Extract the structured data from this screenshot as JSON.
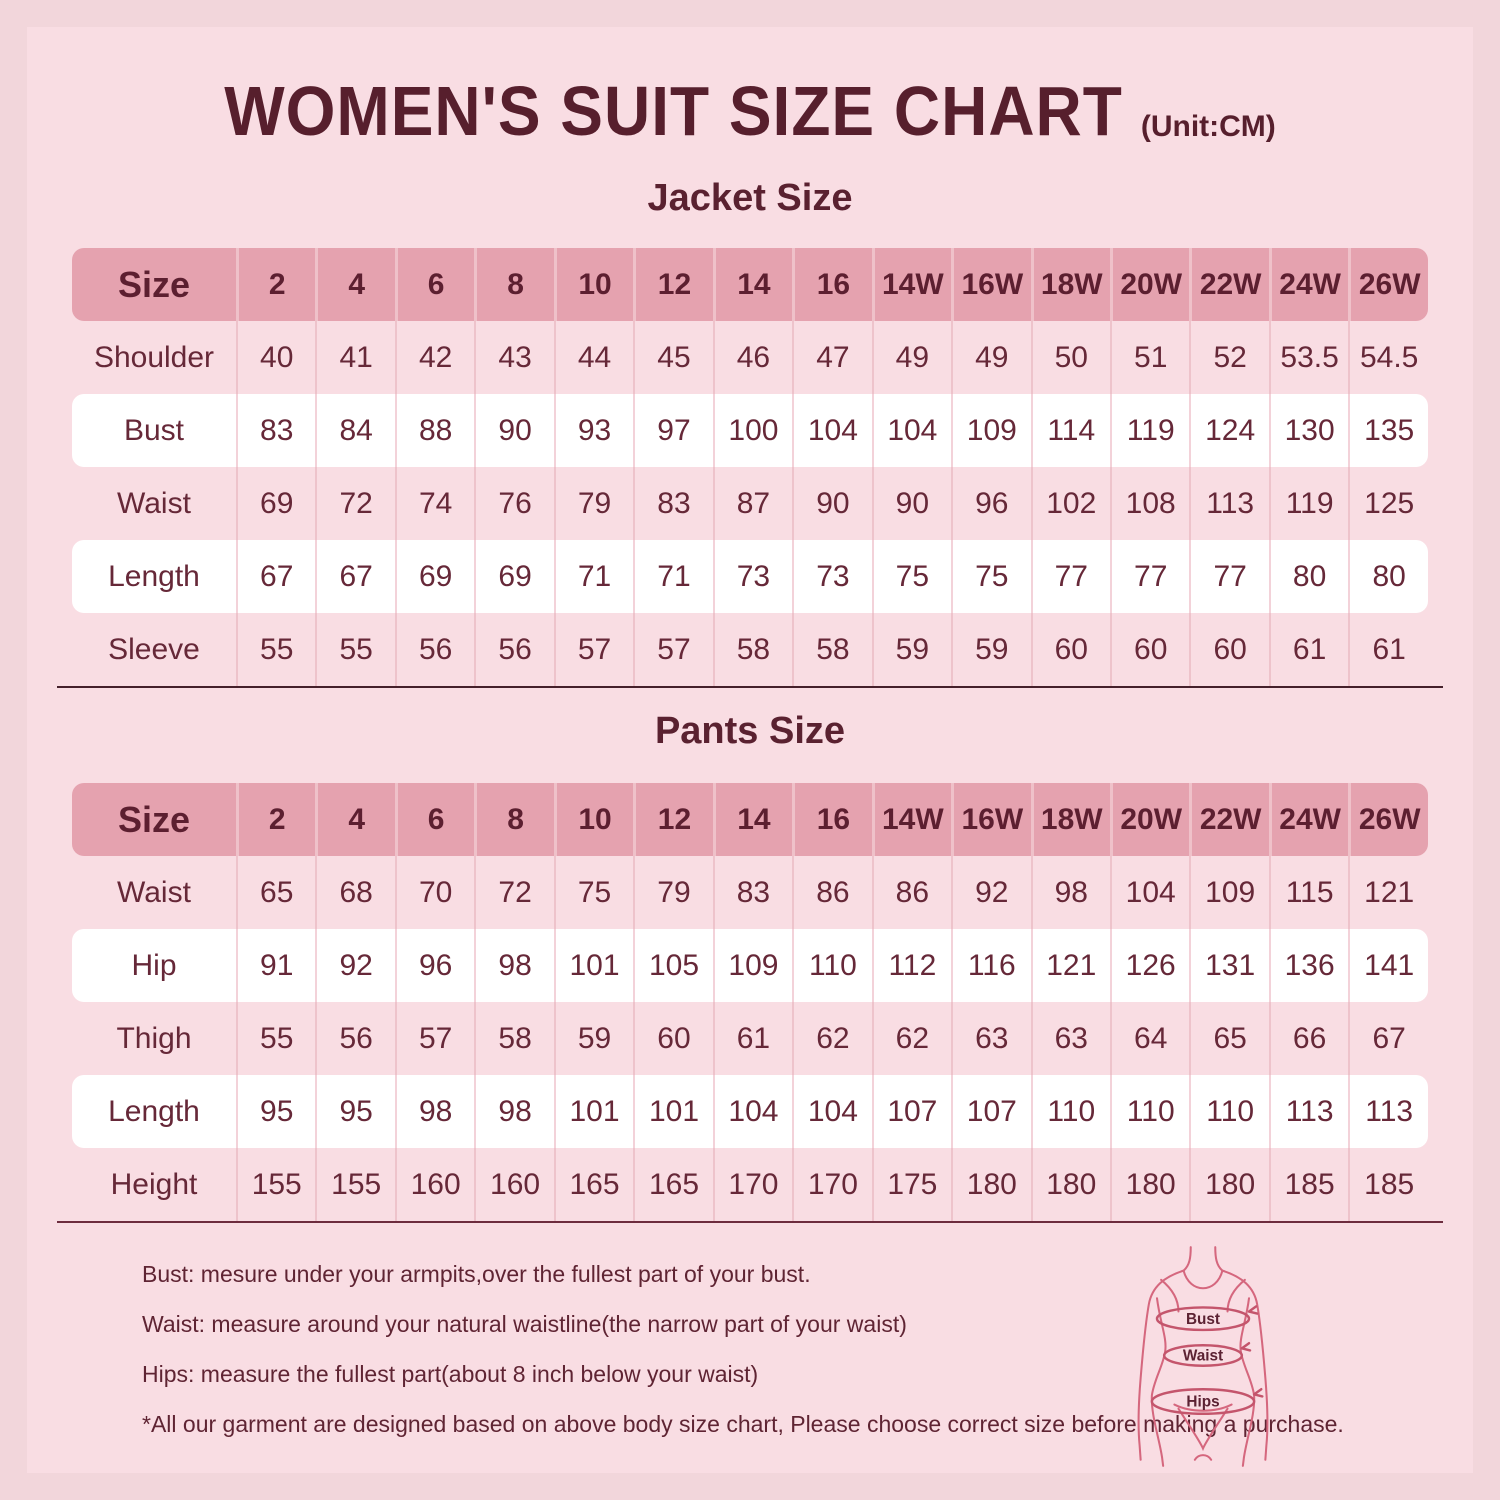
{
  "header": {
    "title": "WOMEN'S SUIT SIZE CHART",
    "unit": "(Unit:CM)"
  },
  "jacket": {
    "title": "Jacket Size",
    "size_label": "Size",
    "sizes": [
      "2",
      "4",
      "6",
      "8",
      "10",
      "12",
      "14",
      "16",
      "14W",
      "16W",
      "18W",
      "20W",
      "22W",
      "24W",
      "26W"
    ],
    "rows": [
      {
        "label": "Shoulder",
        "values": [
          "40",
          "41",
          "42",
          "43",
          "44",
          "45",
          "46",
          "47",
          "49",
          "49",
          "50",
          "51",
          "52",
          "53.5",
          "54.5"
        ]
      },
      {
        "label": "Bust",
        "values": [
          "83",
          "84",
          "88",
          "90",
          "93",
          "97",
          "100",
          "104",
          "104",
          "109",
          "114",
          "119",
          "124",
          "130",
          "135"
        ]
      },
      {
        "label": "Waist",
        "values": [
          "69",
          "72",
          "74",
          "76",
          "79",
          "83",
          "87",
          "90",
          "90",
          "96",
          "102",
          "108",
          "113",
          "119",
          "125"
        ]
      },
      {
        "label": "Length",
        "values": [
          "67",
          "67",
          "69",
          "69",
          "71",
          "71",
          "73",
          "73",
          "75",
          "75",
          "77",
          "77",
          "77",
          "80",
          "80"
        ]
      },
      {
        "label": "Sleeve",
        "values": [
          "55",
          "55",
          "56",
          "56",
          "57",
          "57",
          "58",
          "58",
          "59",
          "59",
          "60",
          "60",
          "60",
          "61",
          "61"
        ]
      }
    ]
  },
  "pants": {
    "title": "Pants Size",
    "size_label": "Size",
    "sizes": [
      "2",
      "4",
      "6",
      "8",
      "10",
      "12",
      "14",
      "16",
      "14W",
      "16W",
      "18W",
      "20W",
      "22W",
      "24W",
      "26W"
    ],
    "rows": [
      {
        "label": "Waist",
        "values": [
          "65",
          "68",
          "70",
          "72",
          "75",
          "79",
          "83",
          "86",
          "86",
          "92",
          "98",
          "104",
          "109",
          "115",
          "121"
        ]
      },
      {
        "label": "Hip",
        "values": [
          "91",
          "92",
          "96",
          "98",
          "101",
          "105",
          "109",
          "110",
          "112",
          "116",
          "121",
          "126",
          "131",
          "136",
          "141"
        ]
      },
      {
        "label": "Thigh",
        "values": [
          "55",
          "56",
          "57",
          "58",
          "59",
          "60",
          "61",
          "62",
          "62",
          "63",
          "63",
          "64",
          "65",
          "66",
          "67"
        ]
      },
      {
        "label": "Length",
        "values": [
          "95",
          "95",
          "98",
          "98",
          "101",
          "101",
          "104",
          "104",
          "107",
          "107",
          "110",
          "110",
          "110",
          "113",
          "113"
        ]
      },
      {
        "label": "Height",
        "values": [
          "155",
          "155",
          "160",
          "160",
          "165",
          "165",
          "170",
          "170",
          "175",
          "180",
          "180",
          "180",
          "180",
          "185",
          "185"
        ]
      }
    ]
  },
  "footer": {
    "notes": [
      "Bust: mesure under your armpits,over the fullest part of your bust.",
      "Waist: measure around your natural waistline(the narrow part of your waist)",
      "Hips: measure the fullest part(about 8 inch below your waist)",
      "*All our garment are designed based on above body size chart, Please choose correct size before making a purchase."
    ],
    "figure_labels": {
      "bust": "Bust",
      "waist": "Waist",
      "hips": "Hips"
    }
  },
  "colors": {
    "page_bg": "#f9dde3",
    "outer_bg": "#f2d6db",
    "header_row_pink": "#e5a2af",
    "white_row": "#ffffff",
    "title_maroon": "#571f2d",
    "table_text": "#662838",
    "figure_line_pink": "#d5677e"
  }
}
